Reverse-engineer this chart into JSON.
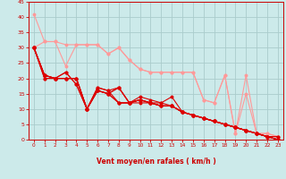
{
  "background_color": "#cceaea",
  "grid_color": "#aacccc",
  "line_color_dark": "#dd0000",
  "line_color_light": "#ff9999",
  "xlabel": "Vent moyen/en rafales ( km/h )",
  "xlabel_color": "#cc0000",
  "tick_color": "#cc0000",
  "xlim": [
    -0.5,
    23.5
  ],
  "ylim": [
    0,
    45
  ],
  "yticks": [
    0,
    5,
    10,
    15,
    20,
    25,
    30,
    35,
    40,
    45
  ],
  "xticks": [
    0,
    1,
    2,
    3,
    4,
    5,
    6,
    7,
    8,
    9,
    10,
    11,
    12,
    13,
    14,
    15,
    16,
    17,
    18,
    19,
    20,
    21,
    22,
    23
  ],
  "lines_dark": [
    [
      30,
      21,
      20,
      20,
      20,
      10,
      17,
      16,
      17,
      12,
      14,
      13,
      12,
      14,
      9,
      8,
      7,
      6,
      5,
      4,
      3,
      2,
      1,
      0
    ],
    [
      30,
      21,
      20,
      20,
      20,
      10,
      17,
      16,
      12,
      12,
      13,
      12,
      12,
      11,
      9,
      8,
      7,
      6,
      5,
      4,
      3,
      2,
      1,
      1
    ],
    [
      30,
      21,
      20,
      20,
      20,
      10,
      16,
      15,
      12,
      12,
      13,
      12,
      11,
      11,
      9,
      8,
      7,
      6,
      5,
      4,
      3,
      2,
      1,
      1
    ],
    [
      30,
      21,
      20,
      20,
      20,
      10,
      16,
      15,
      12,
      12,
      12,
      12,
      11,
      11,
      9,
      8,
      7,
      6,
      5,
      4,
      3,
      2,
      1,
      0
    ],
    [
      30,
      20,
      20,
      22,
      18,
      10,
      16,
      15,
      17,
      12,
      13,
      12,
      11,
      11,
      9,
      8,
      7,
      6,
      5,
      4,
      3,
      2,
      1,
      0
    ],
    [
      30,
      20,
      20,
      22,
      18,
      10,
      16,
      15,
      17,
      12,
      13,
      12,
      11,
      11,
      9,
      8,
      7,
      6,
      5,
      4,
      3,
      2,
      1,
      0
    ]
  ],
  "lines_light": [
    [
      41,
      32,
      32,
      24,
      31,
      31,
      31,
      28,
      30,
      26,
      23,
      22,
      22,
      22,
      22,
      22,
      13,
      12,
      21,
      2,
      21,
      2,
      2,
      1
    ],
    [
      30,
      32,
      32,
      31,
      31,
      31,
      31,
      28,
      30,
      26,
      23,
      22,
      22,
      22,
      22,
      22,
      13,
      12,
      21,
      2,
      15,
      2,
      2,
      1
    ]
  ],
  "arrow_chars": [
    "↓",
    "↓",
    "↓",
    "↓",
    "↓",
    "↓",
    "↓",
    "↓",
    "↓",
    "↓",
    "↓",
    "↓",
    "↓",
    "↓",
    "↓",
    "↓",
    "↓",
    "↑",
    "↖",
    "←",
    "↖",
    "←",
    "←",
    "←"
  ]
}
